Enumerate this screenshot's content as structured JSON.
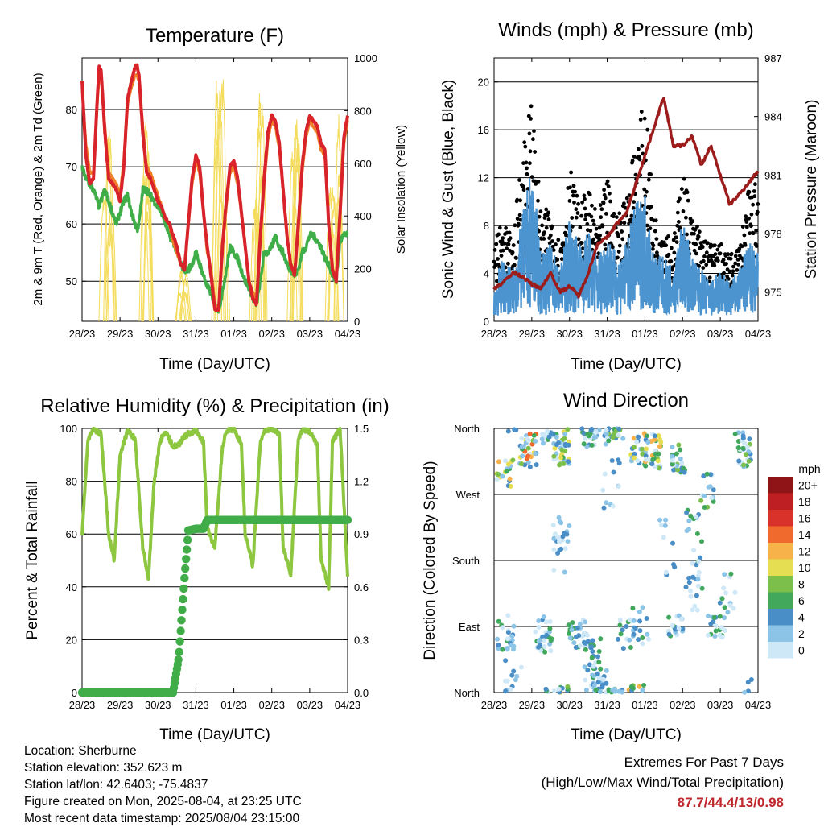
{
  "days": [
    "28/23",
    "29/23",
    "30/23",
    "31/23",
    "01/23",
    "02/23",
    "03/23",
    "04/23"
  ],
  "panels": {
    "temperature": {
      "title": "Temperature (F)",
      "xlabel": "Time (Day/UTC)",
      "ylabel_left": "2m & 9m T (Red, Orange) & 2m Td (Green)",
      "ylabel_right": "Solar Insolation (Yellow)",
      "left_ticks": [
        "50",
        "60",
        "70",
        "80"
      ],
      "right_ticks": [
        "0",
        "200",
        "400",
        "600",
        "800",
        "1000"
      ]
    },
    "winds": {
      "title": "Winds (mph) & Pressure (mb)",
      "xlabel": "Time (Day/UTC)",
      "ylabel_left": "Sonic Wind & Gust (Blue, Black)",
      "ylabel_right": "Station Pressure (Maroon)",
      "left_ticks": [
        "0",
        "4",
        "8",
        "12",
        "16",
        "20"
      ],
      "right_ticks": [
        "975",
        "978",
        "981",
        "984",
        "987"
      ]
    },
    "humidity": {
      "title": "Relative Humidity (%) & Precipitation (in)",
      "xlabel": "Time (Day/UTC)",
      "ylabel_left": "Percent & Total Rainfall",
      "left_ticks": [
        "0",
        "20",
        "40",
        "60",
        "80",
        "100"
      ],
      "right_ticks": [
        "0.0",
        "0.3",
        "0.6",
        "0.9",
        "1.2",
        "1.5"
      ]
    },
    "direction": {
      "title": "Wind Direction",
      "xlabel": "Time (Day/UTC)",
      "ylabel_left": "Direction (Colored By Speed)",
      "dir_ticks": [
        "North",
        "East",
        "South",
        "West",
        "North"
      ],
      "legend_title": "mph",
      "legend": [
        {
          "label": "0",
          "color": "#cfe8f7"
        },
        {
          "label": "2",
          "color": "#8cc4e8"
        },
        {
          "label": "4",
          "color": "#4a8ec8"
        },
        {
          "label": "6",
          "color": "#41a85c"
        },
        {
          "label": "8",
          "color": "#7cbf4a"
        },
        {
          "label": "10",
          "color": "#e6de52"
        },
        {
          "label": "12",
          "color": "#f7b24a"
        },
        {
          "label": "14",
          "color": "#ef6a2c"
        },
        {
          "label": "16",
          "color": "#d8322b"
        },
        {
          "label": "18",
          "color": "#bd1f22"
        },
        {
          "label": "20+",
          "color": "#8e1418"
        }
      ]
    }
  },
  "info": {
    "location": "Location: Sherburne",
    "elevation": "Station elevation: 352.623 m",
    "latlon": "Station lat/lon: 42.6403; -75.4837",
    "created": "Figure created on Mon, 2025-08-04, at 23:25 UTC",
    "recent": "Most recent data timestamp: 2025/08/04 23:15:00"
  },
  "extremes": {
    "line1": "Extremes For Past 7 Days",
    "line2": "(High/Low/Max Wind/Total Precipitation)",
    "values": "87.7/44.4/13/0.98"
  },
  "chart_data": [
    {
      "type": "line",
      "title": "Temperature (F)",
      "xlabel": "Time (Day/UTC)",
      "ylabel": "2m & 9m T (Red, Orange) & 2m Td (Green)",
      "ylabel_right": "Solar Insolation (Yellow)",
      "ylim": [
        43,
        89
      ],
      "ylim_right": [
        0,
        1000
      ],
      "x": [
        0,
        0.1,
        0.2,
        0.3,
        0.4,
        0.45,
        0.5,
        0.6,
        0.7,
        0.8,
        0.9,
        1,
        1.1,
        1.2,
        1.3,
        1.4,
        1.45,
        1.5,
        1.6,
        1.7,
        1.8,
        1.9,
        2,
        2.1,
        2.2,
        2.3,
        2.4,
        2.5,
        2.6,
        2.7,
        2.8,
        2.9,
        3,
        3.1,
        3.2,
        3.3,
        3.4,
        3.45,
        3.5,
        3.6,
        3.7,
        3.8,
        3.9,
        4,
        4.1,
        4.2,
        4.3,
        4.4,
        4.5,
        4.6,
        4.7,
        4.8,
        4.9,
        5,
        5.1,
        5.2,
        5.3,
        5.4,
        5.5,
        5.6,
        5.7,
        5.8,
        5.9,
        6,
        6.1,
        6.2,
        6.3,
        6.4,
        6.5,
        6.6,
        6.7,
        6.8,
        6.9,
        7
      ],
      "series": [
        {
          "name": "2m T",
          "color": "#d8232a",
          "values": [
            85,
            72,
            67,
            68,
            82,
            87.5,
            87,
            76,
            68,
            67,
            66,
            64,
            70,
            82,
            85,
            87.5,
            87.7,
            86,
            76,
            69,
            68,
            66,
            64,
            63,
            61,
            60,
            58,
            56,
            53,
            52,
            60,
            68,
            72,
            70,
            62,
            56,
            51,
            48,
            45,
            45,
            56,
            64,
            70,
            71,
            68,
            62,
            56,
            50,
            47,
            46,
            58,
            68,
            76,
            79,
            78,
            74,
            66,
            58,
            53,
            51,
            60,
            70,
            76,
            79,
            78,
            77,
            74,
            73,
            60,
            52,
            50,
            62,
            75,
            79
          ]
        },
        {
          "name": "9m T",
          "color": "#f07e29",
          "values": [
            84,
            74,
            69,
            69,
            81,
            86,
            86,
            77,
            69,
            68,
            67,
            65,
            71,
            81,
            84,
            86,
            86,
            85,
            77,
            70,
            69,
            67,
            65,
            63,
            61,
            60,
            57,
            55,
            53,
            52,
            60,
            67,
            71,
            69,
            62,
            55,
            52,
            49,
            46,
            45,
            56,
            63,
            69,
            70,
            67,
            62,
            56,
            50,
            48,
            47,
            57,
            67,
            75,
            78,
            77,
            73,
            66,
            58,
            53,
            51,
            59,
            69,
            75,
            78,
            77,
            76,
            73,
            72,
            60,
            52,
            51,
            61,
            74,
            78
          ]
        },
        {
          "name": "2m Td",
          "color": "#3fae49",
          "values": [
            70,
            68,
            67,
            66,
            64,
            63,
            64,
            66,
            64,
            62,
            60,
            62,
            64,
            65,
            62,
            60,
            59,
            60,
            66,
            66,
            65,
            64,
            63,
            62,
            60,
            58,
            57,
            55,
            53,
            52,
            52,
            53,
            55,
            53,
            51,
            49,
            48,
            47,
            46,
            45,
            48,
            52,
            56,
            55,
            54,
            52,
            50,
            49,
            47,
            46,
            50,
            55,
            55,
            56,
            58,
            56,
            55,
            53,
            52,
            51,
            52,
            55,
            56,
            58,
            58,
            57,
            56,
            54,
            53,
            51,
            50,
            57,
            58,
            58
          ]
        }
      ],
      "solar_insolation_daily_peaks": [
        {
          "day": "28/23",
          "peak": 780
        },
        {
          "day": "29/23",
          "peak": 900
        },
        {
          "day": "30/23",
          "peak": 210
        },
        {
          "day": "31/23",
          "peak": 990
        },
        {
          "day": "01/23",
          "peak": 880
        },
        {
          "day": "02/23",
          "peak": 840
        },
        {
          "day": "03/23",
          "peak": 850
        }
      ]
    },
    {
      "type": "scatter",
      "title": "Winds (mph) & Pressure (mb)",
      "xlabel": "Time (Day/UTC)",
      "ylabel": "Sonic Wind & Gust (Blue, Black)",
      "ylabel_right": "Station Pressure (Maroon)",
      "ylim": [
        0,
        22
      ],
      "ylim_right": [
        973.5,
        987
      ],
      "x": [
        0,
        0.25,
        0.5,
        0.75,
        1,
        1.25,
        1.5,
        1.75,
        2,
        2.25,
        2.5,
        2.75,
        3,
        3.25,
        3.5,
        3.75,
        4,
        4.25,
        4.5,
        4.75,
        5,
        5.25,
        5.5,
        5.75,
        6,
        6.25,
        6.5,
        6.75,
        7
      ],
      "series": [
        {
          "name": "Gust",
          "color": "#000000",
          "values": [
            6,
            8,
            6,
            14,
            17,
            8,
            9,
            6,
            12,
            9,
            10,
            8,
            11,
            8,
            10,
            14,
            17,
            8,
            8,
            6,
            12,
            8,
            7,
            6,
            6,
            5,
            6,
            10,
            11
          ]
        },
        {
          "name": "Sonic Wind",
          "color": "#4b94d0",
          "values": [
            3,
            5,
            4,
            8,
            12,
            5,
            6,
            4,
            8,
            6,
            7,
            5,
            7,
            5,
            6,
            9,
            10,
            5,
            5,
            4,
            8,
            5,
            4,
            3,
            4,
            3,
            4,
            6,
            6
          ]
        },
        {
          "name": "Station Pressure",
          "color": "#9c1c1c",
          "values": [
            975.2,
            975.5,
            976,
            975.8,
            975.4,
            975.2,
            976,
            975,
            975.3,
            974.8,
            976,
            977.5,
            977.8,
            978.5,
            979,
            980.5,
            982,
            983.5,
            985,
            982.5,
            982.5,
            983,
            981.5,
            982.5,
            981,
            979.5,
            980,
            980.6,
            981.2
          ]
        }
      ]
    },
    {
      "type": "line",
      "title": "Relative Humidity (%) & Precipitation (in)",
      "xlabel": "Time (Day/UTC)",
      "ylabel": "Percent & Total Rainfall",
      "ylim": [
        0,
        100
      ],
      "ylim_right": [
        0,
        1.5
      ],
      "x": [
        0,
        0.15,
        0.3,
        0.5,
        0.7,
        0.85,
        1,
        1.2,
        1.4,
        1.6,
        1.75,
        1.9,
        2.05,
        2.2,
        2.4,
        2.55,
        2.7,
        2.8,
        3,
        3.2,
        3.3,
        3.5,
        3.7,
        3.8,
        4,
        4.2,
        4.3,
        4.5,
        4.7,
        4.8,
        5,
        5.2,
        5.3,
        5.5,
        5.7,
        5.8,
        6,
        6.2,
        6.3,
        6.5,
        6.6,
        6.8,
        7
      ],
      "series": [
        {
          "name": "Relative Humidity",
          "color": "#8dc63f",
          "values": [
            60,
            95,
            100,
            98,
            60,
            50,
            90,
            99,
            96,
            55,
            43,
            80,
            95,
            99,
            93,
            94,
            97,
            98,
            99,
            95,
            62,
            55,
            93,
            99,
            100,
            94,
            60,
            48,
            95,
            99,
            100,
            98,
            55,
            45,
            96,
            99,
            99,
            94,
            50,
            40,
            95,
            100,
            44
          ]
        },
        {
          "name": "Total Rainfall",
          "color": "#41ad49",
          "values": [
            0,
            0,
            0,
            0,
            0,
            0,
            0,
            0,
            0,
            0,
            0,
            0,
            0,
            0,
            0,
            0.2,
            0.65,
            0.92,
            0.93,
            0.93,
            0.98,
            0.98,
            0.98,
            0.98,
            0.98,
            0.98,
            0.98,
            0.98,
            0.98,
            0.98,
            0.98,
            0.98,
            0.98,
            0.98,
            0.98,
            0.98,
            0.98,
            0.98,
            0.98,
            0.98,
            0.98,
            0.98,
            0.98
          ]
        }
      ]
    },
    {
      "type": "scatter",
      "title": "Wind Direction",
      "xlabel": "Time (Day/UTC)",
      "ylabel": "Direction (Colored By Speed)",
      "ylim": [
        0,
        360
      ],
      "y_tick_labels": [
        "North",
        "East",
        "South",
        "West",
        "North"
      ],
      "colorbar_title": "mph",
      "colorbar_levels": [
        "0",
        "2",
        "4",
        "6",
        "8",
        "10",
        "12",
        "14",
        "16",
        "18",
        "20+"
      ]
    }
  ]
}
